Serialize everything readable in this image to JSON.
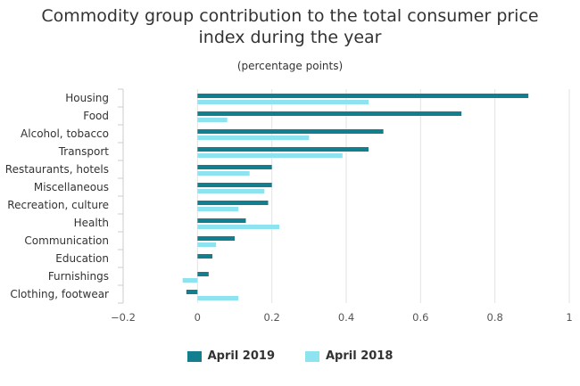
{
  "chart_data": {
    "type": "bar",
    "orientation": "horizontal",
    "title_lines": [
      "Commodity group contribution to the total consumer price",
      "index during the year"
    ],
    "subtitle": "(percentage points)",
    "categories": [
      "Housing",
      "Food",
      "Alcohol, tobacco",
      "Transport",
      "Restaurants, hotels",
      "Miscellaneous",
      "Recreation, culture",
      "Health",
      "Communication",
      "Education",
      "Furnishings",
      "Clothing, footwear"
    ],
    "series": [
      {
        "name": "April 2019",
        "color": "#127e8e",
        "values": [
          0.89,
          0.71,
          0.5,
          0.46,
          0.2,
          0.2,
          0.19,
          0.13,
          0.1,
          0.04,
          0.03,
          -0.03
        ]
      },
      {
        "name": "April 2018",
        "color": "#8de3ef",
        "values": [
          0.46,
          0.08,
          0.3,
          0.39,
          0.14,
          0.18,
          0.11,
          0.22,
          0.05,
          0.0,
          -0.04,
          0.11
        ]
      }
    ],
    "xlim": [
      -0.2,
      1.0
    ],
    "xticks": [
      "−0.2",
      "0",
      "0.2",
      "0.4",
      "0.6",
      "0.8",
      "1"
    ],
    "xtick_values": [
      -0.2,
      0,
      0.2,
      0.4,
      0.6,
      0.8,
      1.0
    ],
    "grid": "vertical",
    "legend_position": "bottom-center"
  }
}
